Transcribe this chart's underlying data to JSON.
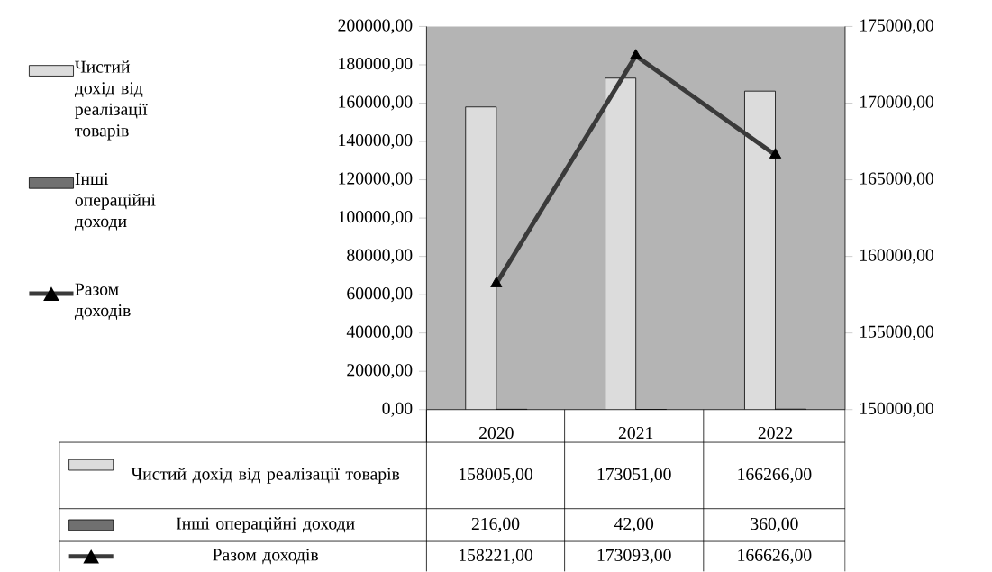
{
  "chart_data": {
    "type": "bar",
    "categories": [
      "2020",
      "2021",
      "2022"
    ],
    "series": [
      {
        "name": "Чистий дохід від реалізації товарів",
        "color": "#dcdcdc",
        "values": [
          158005,
          173051,
          166266
        ],
        "value_labels": [
          "158005,00",
          "173051,00",
          "166266,00"
        ]
      },
      {
        "name": "Інші операційні доходи",
        "color": "#707070",
        "values": [
          216,
          42,
          360
        ],
        "value_labels": [
          "216,00",
          "42,00",
          "360,00"
        ]
      },
      {
        "name": "Разом доходів",
        "color": "#3a3a3a",
        "type": "line",
        "axis": "y2",
        "marker": "triangle",
        "values": [
          158221,
          173093,
          166626
        ],
        "value_labels": [
          "158221,00",
          "173093,00",
          "166626,00"
        ]
      }
    ],
    "ylim": [
      0,
      200000
    ],
    "yticks": [
      {
        "value": 0,
        "label": "0,00"
      },
      {
        "value": 20000,
        "label": "20000,00"
      },
      {
        "value": 40000,
        "label": "40000,00"
      },
      {
        "value": 60000,
        "label": "60000,00"
      },
      {
        "value": 80000,
        "label": "80000,00"
      },
      {
        "value": 100000,
        "label": "100000,00"
      },
      {
        "value": 120000,
        "label": "120000,00"
      },
      {
        "value": 140000,
        "label": "140000,00"
      },
      {
        "value": 160000,
        "label": "160000,00"
      },
      {
        "value": 180000,
        "label": "180000,00"
      },
      {
        "value": 200000,
        "label": "200000,00"
      }
    ],
    "y2lim": [
      150000,
      175000
    ],
    "y2ticks": [
      {
        "value": 150000,
        "label": "150000,00"
      },
      {
        "value": 155000,
        "label": "155000,00"
      },
      {
        "value": 160000,
        "label": "160000,00"
      },
      {
        "value": 165000,
        "label": "165000,00"
      },
      {
        "value": 170000,
        "label": "170000,00"
      },
      {
        "value": 175000,
        "label": "175000,00"
      }
    ],
    "legend": "left",
    "grid": false
  }
}
